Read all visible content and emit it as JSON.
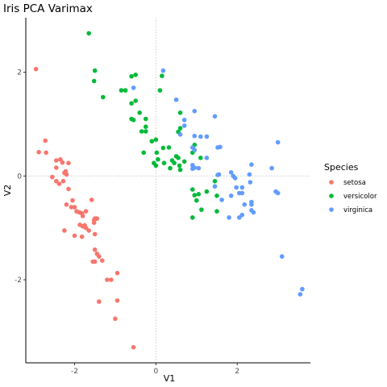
{
  "chart_data": {
    "type": "scatter",
    "title": "Iris PCA Varimax",
    "xlabel": "V1",
    "ylabel": "V2",
    "xlim": [
      -3.2,
      3.8
    ],
    "ylim": [
      -3.6,
      3.05
    ],
    "x_ticks": [
      -2,
      0,
      2
    ],
    "y_ticks": [
      -2,
      0,
      2
    ],
    "reference_lines": {
      "x": 0,
      "y": 0
    },
    "grid": false,
    "legend_position": "right",
    "legend_title": "Species",
    "series": [
      {
        "name": "setosa",
        "color": "#f8766d",
        "points": [
          [
            -2.95,
            2.06
          ],
          [
            -2.72,
            0.68
          ],
          [
            -2.88,
            0.46
          ],
          [
            -2.7,
            0.45
          ],
          [
            -2.55,
            -0.02
          ],
          [
            -2.45,
            0.3
          ],
          [
            -2.45,
            0.16
          ],
          [
            -2.45,
            -0.1
          ],
          [
            -2.35,
            0.32
          ],
          [
            -2.3,
            0.26
          ],
          [
            -2.38,
            -0.15
          ],
          [
            -2.28,
            -0.1
          ],
          [
            -2.25,
            0.06
          ],
          [
            -2.22,
            0.09
          ],
          [
            -2.15,
            0.25
          ],
          [
            -2.2,
            0.03
          ],
          [
            -2.15,
            -0.25
          ],
          [
            -2.2,
            -0.55
          ],
          [
            -2.05,
            -0.47
          ],
          [
            -2.0,
            -0.6
          ],
          [
            -2.08,
            -0.6
          ],
          [
            -1.95,
            -0.68
          ],
          [
            -1.88,
            -0.7
          ],
          [
            -1.82,
            -0.72
          ],
          [
            -1.8,
            -0.77
          ],
          [
            -1.72,
            -0.68
          ],
          [
            -1.58,
            -0.46
          ],
          [
            -1.52,
            -0.85
          ],
          [
            -1.5,
            -0.82
          ],
          [
            -1.45,
            -0.82
          ],
          [
            -1.52,
            -0.9
          ],
          [
            -2.25,
            -1.05
          ],
          [
            -2.0,
            -1.15
          ],
          [
            -1.87,
            -0.94
          ],
          [
            -1.8,
            -0.97
          ],
          [
            -1.75,
            -0.95
          ],
          [
            -1.72,
            -1.0
          ],
          [
            -1.65,
            -1.05
          ],
          [
            -1.82,
            -1.17
          ],
          [
            -1.5,
            -1.12
          ],
          [
            -1.5,
            -1.42
          ],
          [
            -1.45,
            -1.5
          ],
          [
            -1.4,
            -1.55
          ],
          [
            -1.32,
            -1.63
          ],
          [
            -1.55,
            -1.65
          ],
          [
            -1.5,
            -1.65
          ],
          [
            -0.95,
            -1.87
          ],
          [
            -1.1,
            -2.0
          ],
          [
            -1.2,
            -2.0
          ],
          [
            -1.4,
            -2.42
          ],
          [
            -0.95,
            -2.4
          ],
          [
            -1.0,
            -2.75
          ],
          [
            -0.55,
            -3.3
          ]
        ]
      },
      {
        "name": "versicolor",
        "color": "#00ba38",
        "points": [
          [
            -1.65,
            2.75
          ],
          [
            -1.5,
            2.03
          ],
          [
            -1.52,
            1.83
          ],
          [
            -0.5,
            1.95
          ],
          [
            -0.6,
            1.92
          ],
          [
            -1.3,
            1.52
          ],
          [
            -0.85,
            1.65
          ],
          [
            -0.75,
            1.65
          ],
          [
            -0.5,
            1.45
          ],
          [
            -0.6,
            1.4
          ],
          [
            -0.4,
            1.22
          ],
          [
            -0.25,
            1.1
          ],
          [
            -0.6,
            1.1
          ],
          [
            -0.55,
            1.08
          ],
          [
            -0.25,
            0.95
          ],
          [
            -0.35,
            0.86
          ],
          [
            -0.25,
            0.86
          ],
          [
            -0.1,
            0.67
          ],
          [
            0.0,
            0.7
          ],
          [
            -0.3,
            0.45
          ],
          [
            0.02,
            0.45
          ],
          [
            0.15,
            1.93
          ],
          [
            0.1,
            1.65
          ],
          [
            0.6,
            1.22
          ],
          [
            0.6,
            0.92
          ],
          [
            0.55,
            0.85
          ],
          [
            0.18,
            0.54
          ],
          [
            0.32,
            0.55
          ],
          [
            0.05,
            0.32
          ],
          [
            -0.05,
            0.25
          ],
          [
            0.0,
            0.2
          ],
          [
            0.2,
            0.25
          ],
          [
            0.4,
            0.3
          ],
          [
            0.55,
            0.35
          ],
          [
            0.5,
            0.38
          ],
          [
            0.45,
            0.25
          ],
          [
            0.7,
            0.28
          ],
          [
            0.9,
            0.45
          ],
          [
            0.95,
            0.6
          ],
          [
            1.1,
            0.35
          ],
          [
            0.35,
            0.15
          ],
          [
            0.58,
            0.2
          ],
          [
            0.6,
            0.12
          ],
          [
            0.9,
            -0.26
          ],
          [
            0.95,
            -0.37
          ],
          [
            1.0,
            -0.47
          ],
          [
            1.12,
            -0.65
          ],
          [
            1.05,
            -0.35
          ],
          [
            1.25,
            -0.3
          ],
          [
            1.45,
            -0.1
          ],
          [
            1.5,
            -0.38
          ],
          [
            1.5,
            -0.68
          ],
          [
            0.9,
            -0.8
          ]
        ]
      },
      {
        "name": "virginica",
        "color": "#619cff",
        "points": [
          [
            0.18,
            2.03
          ],
          [
            -0.55,
            1.7
          ],
          [
            0.5,
            1.47
          ],
          [
            1.45,
            1.15
          ],
          [
            0.95,
            1.25
          ],
          [
            0.7,
            1.08
          ],
          [
            0.7,
            0.97
          ],
          [
            0.6,
            0.8
          ],
          [
            0.95,
            0.77
          ],
          [
            1.1,
            0.76
          ],
          [
            1.25,
            0.76
          ],
          [
            1.52,
            0.55
          ],
          [
            1.58,
            0.56
          ],
          [
            0.9,
            0.55
          ],
          [
            0.95,
            0.5
          ],
          [
            0.9,
            0.21
          ],
          [
            0.95,
            0.16
          ],
          [
            1.05,
            0.15
          ],
          [
            0.9,
            0.14
          ],
          [
            1.25,
            0.35
          ],
          [
            1.52,
            0.02
          ],
          [
            1.55,
            0.03
          ],
          [
            1.45,
            -0.2
          ],
          [
            1.62,
            -0.46
          ],
          [
            1.85,
            0.07
          ],
          [
            1.9,
            0.0
          ],
          [
            1.95,
            -0.04
          ],
          [
            1.98,
            -0.22
          ],
          [
            2.12,
            -0.22
          ],
          [
            2.05,
            -0.33
          ],
          [
            2.12,
            -0.33
          ],
          [
            1.85,
            -0.38
          ],
          [
            1.8,
            -0.8
          ],
          [
            2.05,
            -0.8
          ],
          [
            2.12,
            -0.75
          ],
          [
            2.18,
            -0.55
          ],
          [
            2.32,
            -0.12
          ],
          [
            2.3,
            0.03
          ],
          [
            2.35,
            0.22
          ],
          [
            2.35,
            -0.5
          ],
          [
            2.35,
            -0.55
          ],
          [
            2.35,
            -0.66
          ],
          [
            2.4,
            -0.7
          ],
          [
            2.85,
            0.15
          ],
          [
            3.0,
            0.65
          ],
          [
            2.95,
            -0.3
          ],
          [
            3.0,
            -0.33
          ],
          [
            3.1,
            -1.55
          ],
          [
            3.6,
            -2.18
          ],
          [
            3.55,
            -2.28
          ]
        ]
      }
    ]
  }
}
